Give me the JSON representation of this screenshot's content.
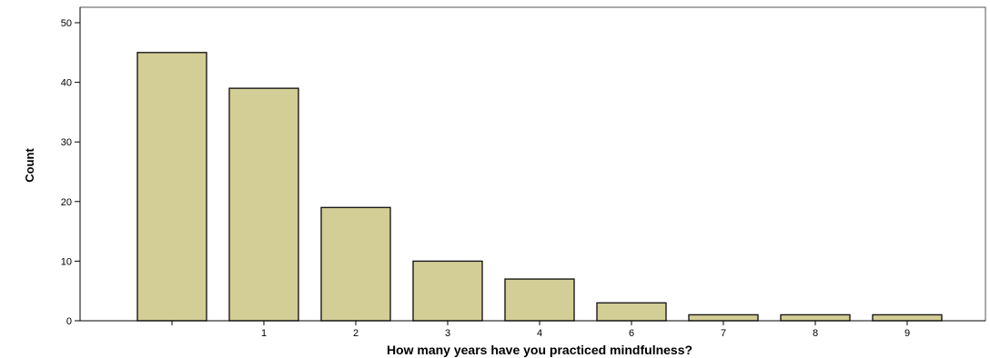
{
  "chart_data": {
    "type": "bar",
    "categories": [
      "",
      "1",
      "2",
      "3",
      "4",
      "6",
      "7",
      "8",
      "9"
    ],
    "values": [
      45,
      39,
      19,
      10,
      7,
      3,
      1,
      1,
      1
    ],
    "xlabel": "How many years have you practiced mindfulness?",
    "ylabel": "Count",
    "ylim": [
      0,
      50
    ],
    "yticks": [
      0,
      10,
      20,
      30,
      40,
      50
    ],
    "grid": false,
    "legend": "none",
    "colors": {
      "bar_fill": "#d3ce96",
      "bar_stroke": "#1a1a1a",
      "axis": "#000000",
      "frame": "#555555"
    }
  }
}
